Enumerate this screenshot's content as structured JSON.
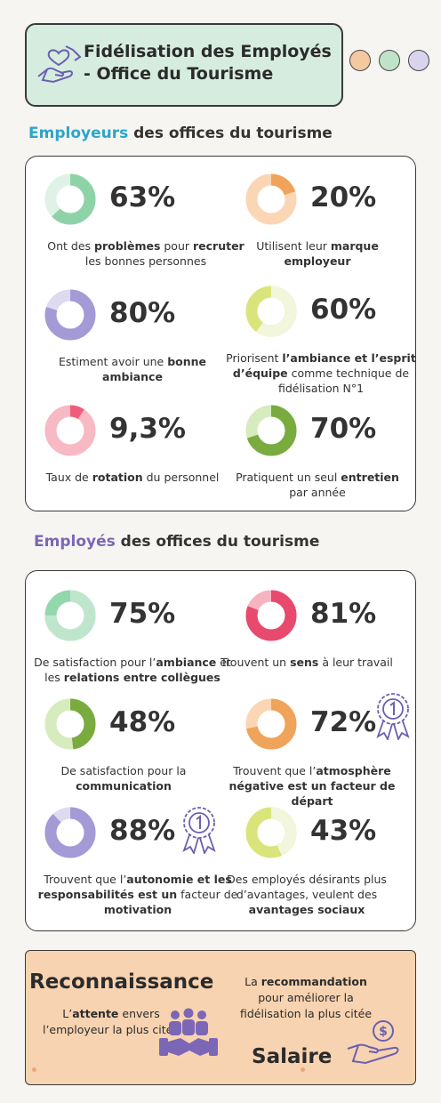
{
  "header": {
    "title_line1": "Fidélisation des Employés",
    "title_line2": "- Office du Tourisme",
    "dot_colors": [
      "#f5c9a0",
      "#bfe3c8",
      "#d9d4ee"
    ]
  },
  "section1": {
    "highlight": "Employeurs",
    "rest": " des offices du tourisme",
    "highlight_color": "#2aa6c9",
    "stats": [
      {
        "value": "63%",
        "fraction": 0.63,
        "color": "#8ed3a8",
        "track": "#dff2e5",
        "caption": [
          [
            "Ont des ",
            false
          ],
          [
            "problèmes",
            true
          ],
          [
            " pour ",
            false
          ],
          [
            "recruter",
            true
          ],
          [
            " les bonnes personnes",
            false
          ]
        ]
      },
      {
        "value": "20%",
        "fraction": 0.2,
        "color": "#f0a35a",
        "track": "#fbd6b4",
        "caption": [
          [
            "Utilisent leur ",
            false
          ],
          [
            "marque employeur",
            true
          ]
        ]
      },
      {
        "value": "80%",
        "fraction": 0.8,
        "color": "#a39ad6",
        "track": "#dedaf0",
        "caption": [
          [
            "Estiment avoir une ",
            false
          ],
          [
            "bonne ambiance",
            true
          ]
        ]
      },
      {
        "value": "60%",
        "fraction": 0.6,
        "color": "#f2f6dc",
        "track": "#d9e57a",
        "caption": [
          [
            "Priorisent ",
            false
          ],
          [
            "l’ambiance et l’esprit d’équipe",
            true
          ],
          [
            " comme technique de fidélisation N°1",
            false
          ]
        ]
      },
      {
        "value": "9,3%",
        "fraction": 0.093,
        "color": "#ee5e7a",
        "track": "#f7b9c3",
        "caption": [
          [
            "Taux de ",
            false
          ],
          [
            "rotation",
            true
          ],
          [
            " du personnel",
            false
          ]
        ]
      },
      {
        "value": "70%",
        "fraction": 0.7,
        "color": "#7aab3f",
        "track": "#d6ebbe",
        "caption": [
          [
            "Pratiquent un seul ",
            false
          ],
          [
            "entretien",
            true
          ],
          [
            " par année",
            false
          ]
        ]
      }
    ]
  },
  "section2": {
    "highlight": "Employés",
    "rest": " des offices du tourisme",
    "highlight_color": "#7b67b5",
    "stats": [
      {
        "value": "75%",
        "fraction": 0.75,
        "color": "#bfe6cc",
        "track": "#93d7ad",
        "caption": [
          [
            "De satisfaction pour l’",
            false
          ],
          [
            "ambiance",
            true
          ],
          [
            " et les ",
            false
          ],
          [
            "relations entre collègues",
            true
          ]
        ]
      },
      {
        "value": "81%",
        "fraction": 0.81,
        "color": "#e84a6e",
        "track": "#f6b4c1",
        "caption": [
          [
            "Trouvent un ",
            false
          ],
          [
            "sens",
            true
          ],
          [
            " à leur travail",
            false
          ]
        ]
      },
      {
        "value": "48%",
        "fraction": 0.48,
        "color": "#7aab3f",
        "track": "#d6ebbe",
        "caption": [
          [
            "De satisfaction pour la ",
            false
          ],
          [
            "communication",
            true
          ]
        ]
      },
      {
        "value": "72%",
        "fraction": 0.72,
        "color": "#f0a35a",
        "track": "#fbd6b4",
        "caption": [
          [
            "Trouvent que l’",
            false
          ],
          [
            "atmosphère négative est un facteur de départ",
            true
          ]
        ]
      },
      {
        "value": "88%",
        "fraction": 0.88,
        "color": "#a39ad6",
        "track": "#dedaf0",
        "caption": [
          [
            "Trouvent que l’",
            false
          ],
          [
            "autonomie et les responsabilités est un",
            true
          ],
          [
            " facteur de ",
            false
          ],
          [
            "motivation",
            true
          ]
        ]
      },
      {
        "value": "43%",
        "fraction": 0.43,
        "color": "#f2f6dc",
        "track": "#d9e57a",
        "caption": [
          [
            "Des employés désirants plus d’avantages, veulent des ",
            false
          ],
          [
            "avantages sociaux",
            true
          ]
        ]
      }
    ]
  },
  "bottom": {
    "rec_title": "Reconnaissance",
    "rec_caption": [
      [
        "L’",
        false
      ],
      [
        "attente",
        true
      ],
      [
        " envers l’employeur la plus citée",
        false
      ]
    ],
    "sal_caption": [
      [
        "La ",
        false
      ],
      [
        "recommandation",
        true
      ],
      [
        " pour améliorer la fidélisation la plus citée",
        false
      ]
    ],
    "sal_title": "Salaire"
  }
}
